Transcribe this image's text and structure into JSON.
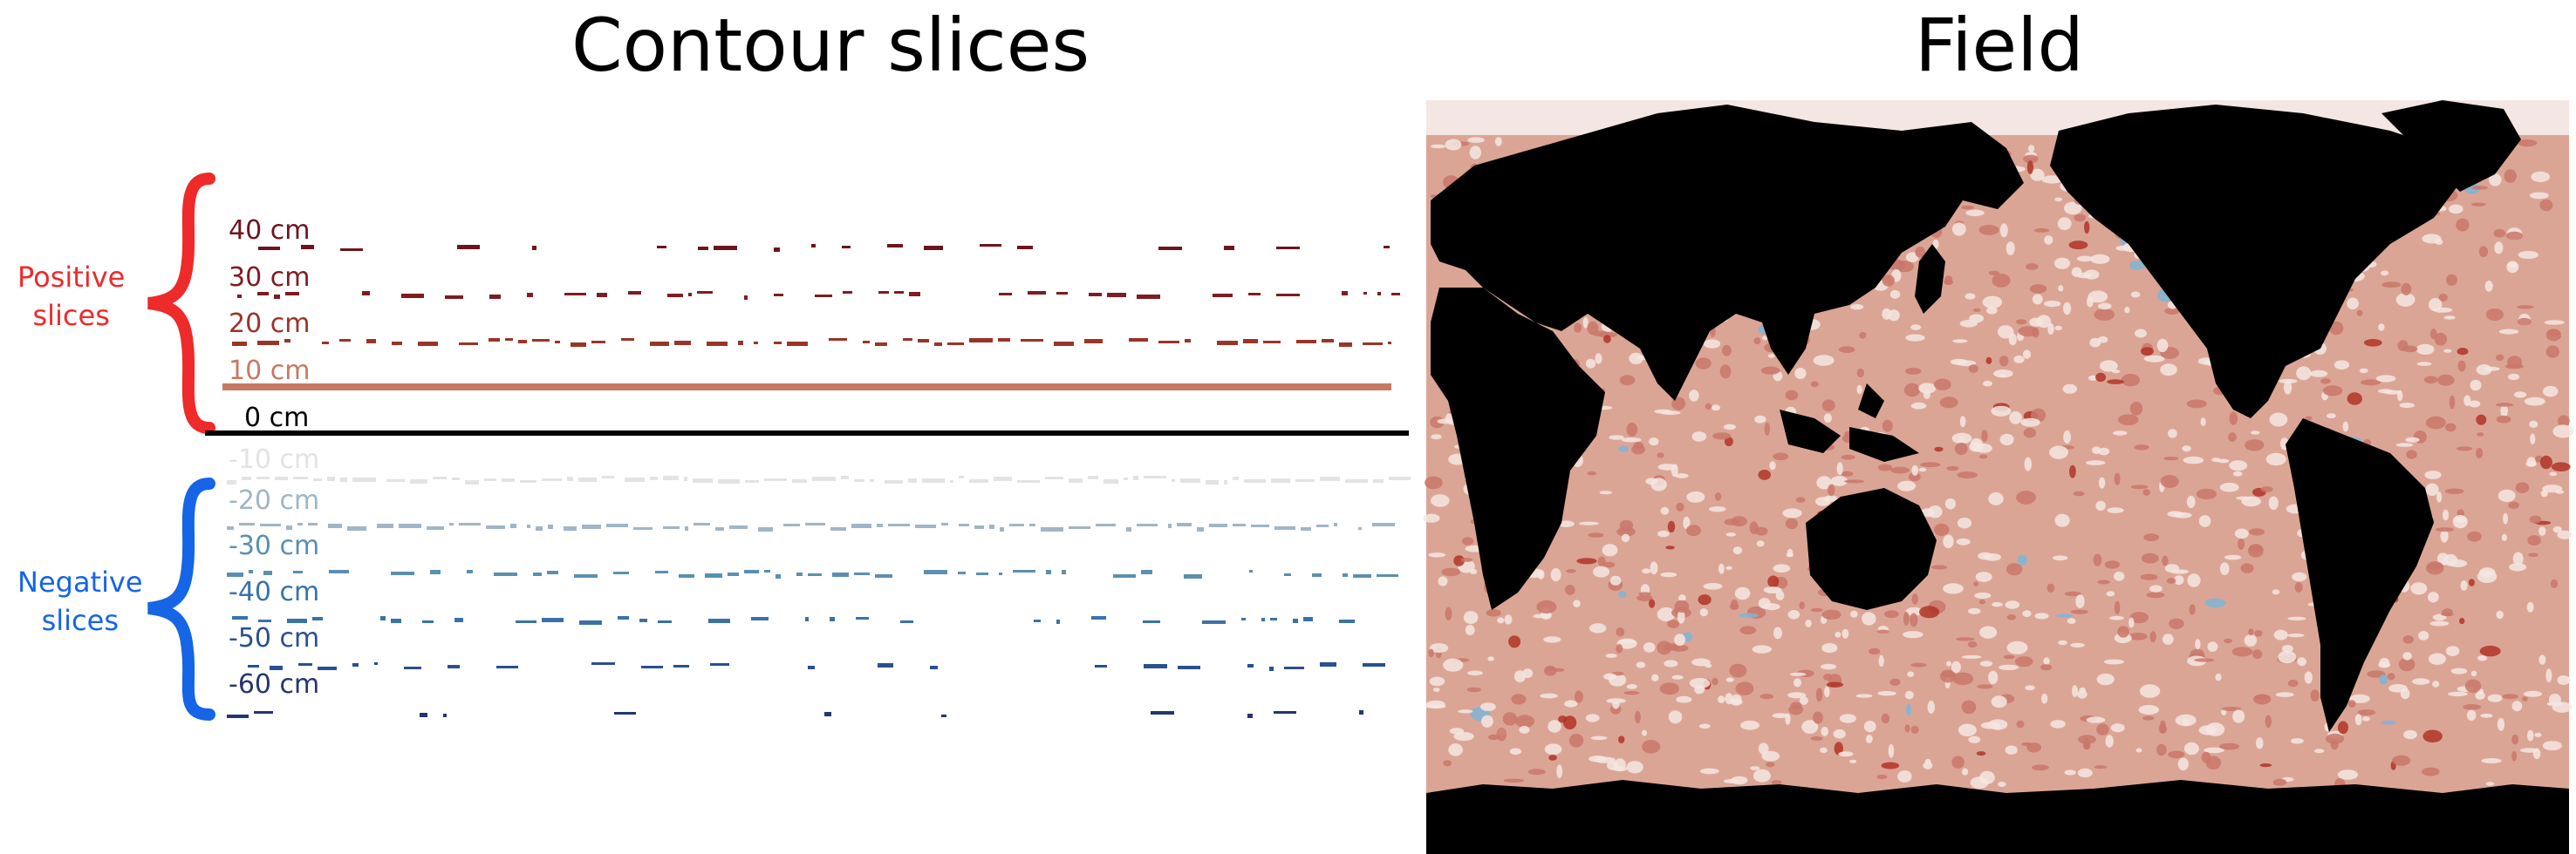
{
  "titles": {
    "left": "Contour slices",
    "right": "Field"
  },
  "groups": {
    "positive": {
      "line1": "Positive",
      "line2": "slices",
      "color": "#ee2a2a"
    },
    "negative": {
      "line1": "Negative",
      "line2": "slices",
      "color": "#1565e6"
    }
  },
  "levels": [
    {
      "label": "40 cm",
      "color": "#6e1420"
    },
    {
      "label": "30 cm",
      "color": "#7e1c22"
    },
    {
      "label": "20 cm",
      "color": "#9a3428"
    },
    {
      "label": "10 cm",
      "color": "#c77a63"
    },
    {
      "label": "0 cm",
      "color": "#000000"
    },
    {
      "label": "-10 cm",
      "color": "#e3e3e3"
    },
    {
      "label": "-20 cm",
      "color": "#9fb6c6"
    },
    {
      "label": "-30 cm",
      "color": "#5b8fb2"
    },
    {
      "label": "-40 cm",
      "color": "#3a72a8"
    },
    {
      "label": "-50 cm",
      "color": "#2a4f92"
    },
    {
      "label": "-60 cm",
      "color": "#24356f"
    }
  ],
  "map_colors": {
    "land": "#000000",
    "ocean": "#dba596",
    "light": "#f4e6e2",
    "hot": "#b03428",
    "cold": "#7fb4d6"
  }
}
